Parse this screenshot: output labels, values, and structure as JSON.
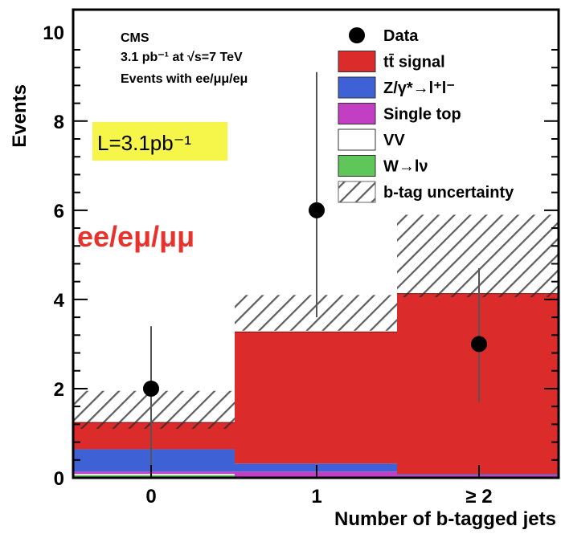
{
  "chart_data": {
    "type": "bar",
    "subtype": "stacked-histogram-with-data-points",
    "title": "",
    "xlabel": "Number of b-tagged jets",
    "ylabel": "Events",
    "categories": [
      "0",
      "1",
      "≥ 2"
    ],
    "ylim": [
      0,
      10.5
    ],
    "yticks": [
      0,
      2,
      4,
      6,
      8,
      10
    ],
    "grid": false,
    "legend_placement": "top-right",
    "series": [
      {
        "name": "W→lν",
        "color": "#5fc75a",
        "values": [
          0.06,
          0.0,
          0.0
        ]
      },
      {
        "name": "VV",
        "color": "#ffffff",
        "values": [
          0.03,
          0.02,
          0.01
        ]
      },
      {
        "name": "Single top",
        "color": "#c23fc4",
        "values": [
          0.05,
          0.12,
          0.05
        ]
      },
      {
        "name": "Z/γ*→l⁺l⁻",
        "color": "#3f61d6",
        "values": [
          0.5,
          0.18,
          0.02
        ]
      },
      {
        "name": "tt̄ signal",
        "color": "#dc2b2b",
        "values": [
          0.6,
          2.95,
          4.05
        ]
      }
    ],
    "uncertainty_band": {
      "name": "b-tag uncertainty",
      "low": [
        1.1,
        3.3,
        4.05
      ],
      "high": [
        1.95,
        4.1,
        5.9
      ]
    },
    "data_points": {
      "name": "Data",
      "values": [
        2,
        6,
        3
      ],
      "err_low": [
        2,
        2.4,
        1.3
      ],
      "err_high": [
        1.4,
        3.1,
        1.7
      ]
    },
    "annotations": {
      "experiment": "CMS",
      "lumi_line": "3.1 pb⁻¹ at √s=7 TeV",
      "selection_line": "Events with ee/μμ/eμ",
      "lumi_box": "L=3.1pb⁻¹",
      "channel_label": "ee/eμ/μμ"
    }
  }
}
